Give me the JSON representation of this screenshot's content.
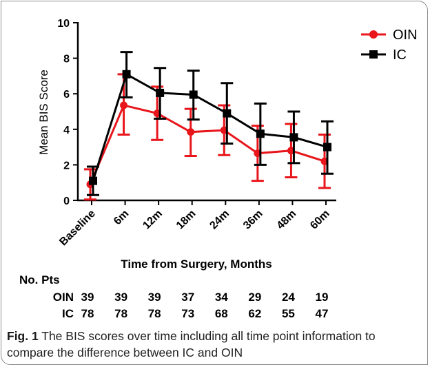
{
  "chart_data": {
    "type": "line",
    "categories": [
      "Baseline",
      "6m",
      "12m",
      "18m",
      "24m",
      "36m",
      "48m",
      "60m"
    ],
    "ylabel": "Mean BIS Score",
    "xlabel": "Time from Surgery, Months",
    "ylim": [
      0,
      10
    ],
    "yticks": [
      "0",
      "2",
      "4",
      "6",
      "8",
      "10"
    ],
    "legend_position": "top-right",
    "series": [
      {
        "name": "OIN",
        "color": "#e8151b",
        "marker": "circle",
        "values": [
          0.9,
          5.35,
          4.9,
          3.85,
          3.95,
          2.65,
          2.8,
          2.2
        ],
        "err_low": [
          0.05,
          3.7,
          3.4,
          2.5,
          2.55,
          1.1,
          1.3,
          0.7
        ],
        "err_high": [
          1.75,
          7.1,
          6.4,
          5.15,
          5.35,
          4.2,
          4.3,
          3.7
        ]
      },
      {
        "name": "IC",
        "color": "#000000",
        "marker": "square",
        "values": [
          1.1,
          7.1,
          6.05,
          5.95,
          4.9,
          3.75,
          3.55,
          3.0
        ],
        "err_low": [
          0.3,
          5.8,
          4.6,
          4.55,
          3.2,
          2.0,
          2.1,
          1.5
        ],
        "err_high": [
          1.9,
          8.35,
          7.45,
          7.3,
          6.6,
          5.45,
          5.0,
          4.45
        ]
      }
    ],
    "patients_table": {
      "header": "No. Pts",
      "rows": [
        {
          "label": "OIN",
          "values": [
            "39",
            "39",
            "39",
            "37",
            "34",
            "29",
            "24",
            "19"
          ]
        },
        {
          "label": "IC",
          "values": [
            "78",
            "78",
            "78",
            "73",
            "68",
            "62",
            "55",
            "47"
          ]
        }
      ]
    }
  },
  "caption": {
    "fig_label": "Fig. 1",
    "text": " The BIS scores over time including all time point information to compare the difference between IC and OIN"
  }
}
